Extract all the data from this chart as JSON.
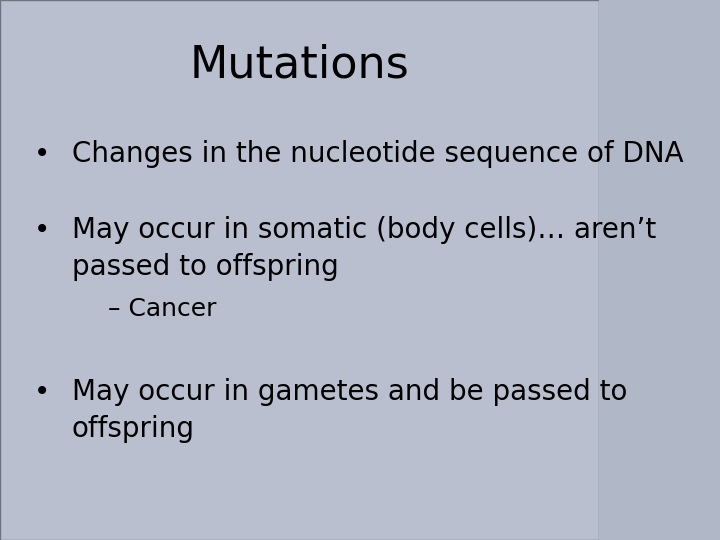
{
  "title": "Mutations",
  "title_fontsize": 32,
  "title_color": "#000000",
  "title_font": "DejaVu Sans",
  "bg_color": "#b0b8c8",
  "text_color": "#000000",
  "bullet_items": [
    {
      "text": "Changes in the nucleotide sequence of DNA",
      "indent": 0,
      "bullet": true
    },
    {
      "text": "May occur in somatic (body cells)… aren’t\npassed to offspring",
      "indent": 0,
      "bullet": true
    },
    {
      "text": "– Cancer",
      "indent": 1,
      "bullet": false
    },
    {
      "text": "May occur in gametes and be passed to\noffspring",
      "indent": 0,
      "bullet": true
    }
  ],
  "content_fontsize": 20,
  "sub_fontsize": 18,
  "overlay_alpha": 0.38,
  "overlay_color": "#c8ccd8"
}
